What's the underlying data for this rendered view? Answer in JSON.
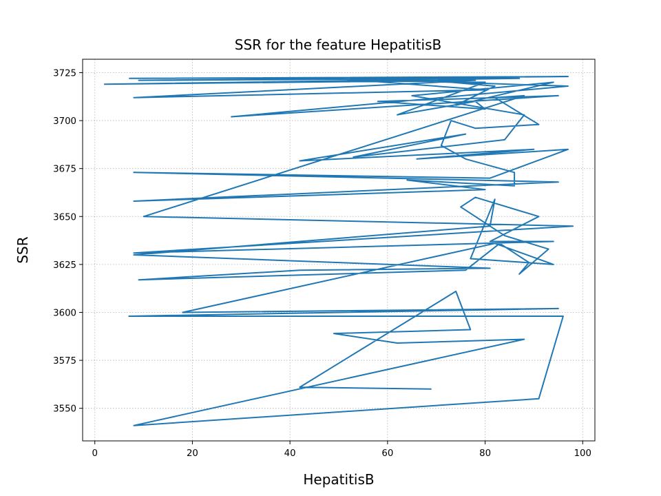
{
  "chart_data": {
    "type": "line",
    "title": "SSR for the feature HepatitisB",
    "xlabel": "HepatitisB",
    "ylabel": "SSR",
    "xlim": [
      -2.5,
      102.5
    ],
    "ylim": [
      3533,
      3732
    ],
    "xticks": [
      0,
      20,
      40,
      60,
      80,
      100
    ],
    "yticks": [
      3550,
      3575,
      3600,
      3625,
      3650,
      3675,
      3700,
      3725
    ],
    "grid": true,
    "series_color": "#1f77b4",
    "series": [
      {
        "x": [
          7,
          97,
          9,
          87,
          2,
          78,
          8,
          80,
          49,
          97,
          28,
          95,
          58,
          80,
          78,
          62,
          80,
          73,
          82,
          74,
          94,
          65,
          88,
          84,
          53,
          76,
          42,
          90,
          66,
          97,
          81,
          8,
          95,
          8,
          80,
          64,
          86,
          86,
          76,
          71,
          73,
          78,
          91,
          82,
          88,
          10,
          98,
          8,
          94,
          81,
          91,
          78,
          75,
          84,
          93,
          87,
          89,
          83,
          76,
          9,
          42,
          81,
          8,
          81,
          82,
          77,
          94,
          82,
          18,
          95,
          7,
          96,
          91,
          8,
          88,
          62,
          49,
          77,
          74,
          42,
          69
        ],
        "y": [
          3722,
          3723,
          3721,
          3722,
          3719,
          3721,
          3712,
          3716,
          3722,
          3718,
          3702,
          3713,
          3710,
          3706,
          3710,
          3703,
          3720,
          3720,
          3718,
          3708,
          3720,
          3713,
          3703,
          3690,
          3681,
          3693,
          3679,
          3685,
          3680,
          3685,
          3670,
          3673,
          3668,
          3658,
          3664,
          3669,
          3666,
          3673,
          3680,
          3687,
          3700,
          3696,
          3698,
          3712,
          3713,
          3650,
          3645,
          3631,
          3637,
          3637,
          3650,
          3660,
          3655,
          3640,
          3633,
          3620,
          3626,
          3636,
          3622,
          3617,
          3622,
          3623,
          3630,
          3645,
          3659,
          3628,
          3625,
          3636,
          3600,
          3602,
          3598,
          3598,
          3555,
          3541,
          3586,
          3584,
          3589,
          3591,
          3611,
          3561,
          3560
        ]
      }
    ]
  }
}
